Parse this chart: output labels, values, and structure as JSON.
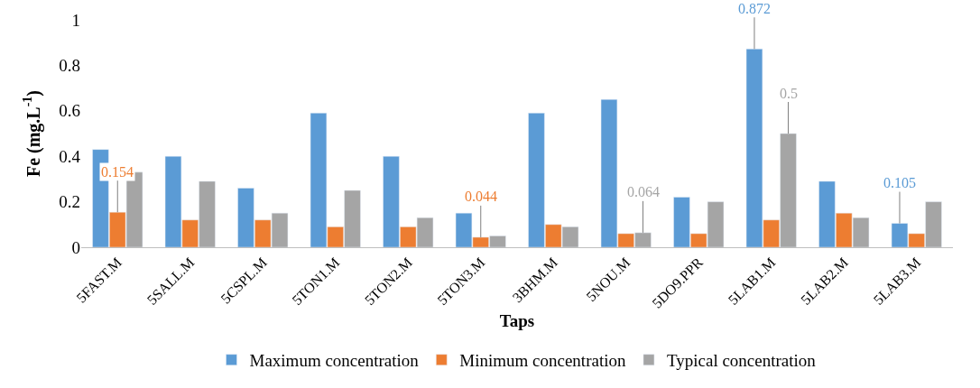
{
  "chart_data": {
    "type": "bar",
    "xlabel": "Taps",
    "ylabel": "Fe (mg.L$^{-1}$)",
    "categories": [
      "5FAST.M",
      "5SALL.M",
      "5CSPL.M",
      "5TON1.M",
      "5TON2.M",
      "5TON3.M",
      "3BHM.M",
      "5NOU.M",
      "5DO9.PPR",
      "5LAB1.M",
      "5LAB2.M",
      "5LAB3.M"
    ],
    "series": [
      {
        "name": "Maximum concentration",
        "color": "#5b9bd5",
        "values": [
          0.43,
          0.4,
          0.26,
          0.59,
          0.4,
          0.15,
          0.59,
          0.65,
          0.22,
          0.872,
          0.29,
          0.105
        ],
        "value_labels": [
          null,
          null,
          null,
          null,
          null,
          null,
          null,
          null,
          null,
          "0.872",
          null,
          "0.105"
        ]
      },
      {
        "name": "Minimum concentration",
        "color": "#ed7d31",
        "values": [
          0.154,
          0.12,
          0.12,
          0.09,
          0.09,
          0.044,
          0.1,
          0.06,
          0.06,
          0.12,
          0.15,
          0.06
        ],
        "value_labels": [
          "0.154",
          null,
          null,
          null,
          null,
          "0.044",
          null,
          null,
          null,
          null,
          null,
          null
        ]
      },
      {
        "name": "Typical concentration",
        "color": "#a5a5a5",
        "values": [
          0.33,
          0.29,
          0.15,
          0.25,
          0.13,
          0.05,
          0.09,
          0.064,
          0.2,
          0.5,
          0.13,
          0.2
        ],
        "value_labels": [
          null,
          null,
          null,
          null,
          null,
          null,
          null,
          "0.064",
          null,
          "0.5",
          null,
          null
        ]
      }
    ],
    "ylim": [
      0,
      1
    ],
    "yticks": [
      0,
      0.2,
      0.4,
      0.6,
      0.8,
      1
    ],
    "grid": false,
    "legend": "bottom"
  }
}
